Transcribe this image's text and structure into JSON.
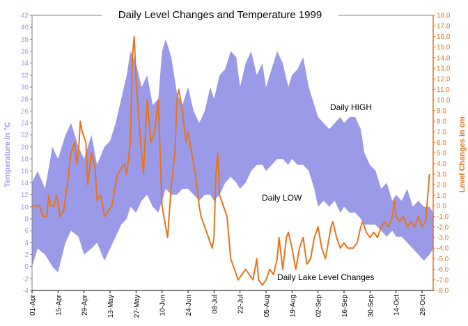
{
  "chart_data": {
    "type": "area",
    "title": "Daily Level Changes and Temperature 1999",
    "ylabel_left": "Temperature in °C",
    "ylabel_right": "Level Changes in cm",
    "ylim_left": [
      -4,
      42
    ],
    "ylim_right": [
      -8,
      18
    ],
    "x_start": "1999-04-01",
    "x_end": "1999-11-03",
    "x_tick_labels": [
      "01-Apr",
      "15-Apr",
      "29-Apr",
      "13-May",
      "27-May",
      "10-Jun",
      "24-Jun",
      "08-Jul",
      "22-Jul",
      "05-Aug",
      "19-Aug",
      "02-Sep",
      "16-Sep",
      "30-Sep",
      "14-Oct",
      "28-Oct"
    ],
    "left_tick_labels": [
      "-4",
      "-2",
      "0",
      "2",
      "4",
      "6",
      "8",
      "10",
      "12",
      "14",
      "16",
      "18",
      "20",
      "22",
      "24",
      "26",
      "28",
      "30",
      "32",
      "34",
      "36",
      "38",
      "40",
      "42"
    ],
    "right_tick_labels": [
      "-8.0",
      "-7.0",
      "-6.0",
      "-5.0",
      "-4.0",
      "-3.0",
      "-2.0",
      "-1.0",
      "0.0",
      "1.0",
      "2.0",
      "3.0",
      "4.0",
      "5.0",
      "6.0",
      "7.0",
      "8.0",
      "9.0",
      "10.0",
      "11.0",
      "12.0",
      "13.0",
      "14.0",
      "15.0",
      "16.0",
      "17.0",
      "18.0"
    ],
    "annotations": {
      "high": "Daily HIGH",
      "low": "Daily LOW",
      "lake": "Daily Lake Level Changes"
    },
    "colors": {
      "temperature_band": "#9a9ae8",
      "level_line": "#e8731a",
      "axis": "#000000"
    },
    "series": [
      {
        "name": "Daily HIGH",
        "axis": "left",
        "points": [
          [
            "1999-04-01",
            14
          ],
          [
            "1999-04-04",
            16
          ],
          [
            "1999-04-08",
            13
          ],
          [
            "1999-04-12",
            20
          ],
          [
            "1999-04-15",
            18
          ],
          [
            "1999-04-19",
            22
          ],
          [
            "1999-04-22",
            24
          ],
          [
            "1999-04-26",
            20
          ],
          [
            "1999-04-29",
            18
          ],
          [
            "1999-05-03",
            22
          ],
          [
            "1999-05-06",
            17
          ],
          [
            "1999-05-10",
            20
          ],
          [
            "1999-05-13",
            21
          ],
          [
            "1999-05-16",
            24
          ],
          [
            "1999-05-19",
            28
          ],
          [
            "1999-05-22",
            32
          ],
          [
            "1999-05-24",
            36
          ],
          [
            "1999-05-27",
            34
          ],
          [
            "1999-05-30",
            30
          ],
          [
            "1999-06-02",
            32
          ],
          [
            "1999-06-05",
            27
          ],
          [
            "1999-06-08",
            28
          ],
          [
            "1999-06-10",
            36
          ],
          [
            "1999-06-12",
            38
          ],
          [
            "1999-06-15",
            35
          ],
          [
            "1999-06-18",
            29
          ],
          [
            "1999-06-21",
            27
          ],
          [
            "1999-06-24",
            30
          ],
          [
            "1999-06-27",
            26
          ],
          [
            "1999-06-30",
            24
          ],
          [
            "1999-07-03",
            26
          ],
          [
            "1999-07-06",
            30
          ],
          [
            "1999-07-08",
            28
          ],
          [
            "1999-07-11",
            32
          ],
          [
            "1999-07-14",
            33
          ],
          [
            "1999-07-17",
            36
          ],
          [
            "1999-07-20",
            35
          ],
          [
            "1999-07-22",
            30
          ],
          [
            "1999-07-25",
            34
          ],
          [
            "1999-07-28",
            36
          ],
          [
            "1999-07-31",
            32
          ],
          [
            "1999-08-03",
            34
          ],
          [
            "1999-08-05",
            30
          ],
          [
            "1999-08-08",
            33
          ],
          [
            "1999-08-11",
            36
          ],
          [
            "1999-08-14",
            34
          ],
          [
            "1999-08-17",
            30
          ],
          [
            "1999-08-19",
            32
          ],
          [
            "1999-08-22",
            33
          ],
          [
            "1999-08-25",
            35
          ],
          [
            "1999-08-28",
            30
          ],
          [
            "1999-08-31",
            27
          ],
          [
            "1999-09-02",
            25
          ],
          [
            "1999-09-05",
            24
          ],
          [
            "1999-09-08",
            23
          ],
          [
            "1999-09-11",
            24
          ],
          [
            "1999-09-14",
            25
          ],
          [
            "1999-09-16",
            24
          ],
          [
            "1999-09-19",
            25
          ],
          [
            "1999-09-22",
            25
          ],
          [
            "1999-09-25",
            23
          ],
          [
            "1999-09-27",
            19
          ],
          [
            "1999-09-30",
            17
          ],
          [
            "1999-10-03",
            16
          ],
          [
            "1999-10-06",
            13
          ],
          [
            "1999-10-09",
            14
          ],
          [
            "1999-10-12",
            11
          ],
          [
            "1999-10-14",
            12
          ],
          [
            "1999-10-17",
            11
          ],
          [
            "1999-10-20",
            13
          ],
          [
            "1999-10-23",
            10
          ],
          [
            "1999-10-26",
            11
          ],
          [
            "1999-10-29",
            10
          ],
          [
            "1999-11-01",
            10
          ],
          [
            "1999-11-03",
            9
          ]
        ]
      },
      {
        "name": "Daily LOW",
        "axis": "left",
        "points": [
          [
            "1999-04-01",
            0
          ],
          [
            "1999-04-04",
            3
          ],
          [
            "1999-04-08",
            2
          ],
          [
            "1999-04-12",
            0
          ],
          [
            "1999-04-15",
            -1
          ],
          [
            "1999-04-19",
            4
          ],
          [
            "1999-04-22",
            6
          ],
          [
            "1999-04-26",
            5
          ],
          [
            "1999-04-29",
            2
          ],
          [
            "1999-05-03",
            3
          ],
          [
            "1999-05-06",
            4
          ],
          [
            "1999-05-10",
            1
          ],
          [
            "1999-05-13",
            3
          ],
          [
            "1999-05-16",
            5
          ],
          [
            "1999-05-19",
            7
          ],
          [
            "1999-05-22",
            8
          ],
          [
            "1999-05-24",
            10
          ],
          [
            "1999-05-27",
            9
          ],
          [
            "1999-05-30",
            11
          ],
          [
            "1999-06-02",
            12
          ],
          [
            "1999-06-05",
            10
          ],
          [
            "1999-06-08",
            9
          ],
          [
            "1999-06-10",
            11
          ],
          [
            "1999-06-12",
            13
          ],
          [
            "1999-06-15",
            12
          ],
          [
            "1999-06-18",
            12
          ],
          [
            "1999-06-21",
            13
          ],
          [
            "1999-06-24",
            13
          ],
          [
            "1999-06-27",
            12
          ],
          [
            "1999-06-30",
            11
          ],
          [
            "1999-07-03",
            12
          ],
          [
            "1999-07-06",
            12
          ],
          [
            "1999-07-08",
            11
          ],
          [
            "1999-07-11",
            12
          ],
          [
            "1999-07-14",
            14
          ],
          [
            "1999-07-17",
            15
          ],
          [
            "1999-07-20",
            14
          ],
          [
            "1999-07-22",
            13
          ],
          [
            "1999-07-25",
            14
          ],
          [
            "1999-07-28",
            16
          ],
          [
            "1999-07-31",
            17
          ],
          [
            "1999-08-03",
            17
          ],
          [
            "1999-08-05",
            16
          ],
          [
            "1999-08-08",
            17
          ],
          [
            "1999-08-11",
            18
          ],
          [
            "1999-08-14",
            18
          ],
          [
            "1999-08-17",
            17
          ],
          [
            "1999-08-19",
            18
          ],
          [
            "1999-08-22",
            17
          ],
          [
            "1999-08-25",
            17
          ],
          [
            "1999-08-28",
            16
          ],
          [
            "1999-08-31",
            13
          ],
          [
            "1999-09-02",
            10
          ],
          [
            "1999-09-05",
            11
          ],
          [
            "1999-09-08",
            10
          ],
          [
            "1999-09-11",
            11
          ],
          [
            "1999-09-14",
            9
          ],
          [
            "1999-09-16",
            10
          ],
          [
            "1999-09-19",
            9
          ],
          [
            "1999-09-22",
            9
          ],
          [
            "1999-09-25",
            8
          ],
          [
            "1999-09-27",
            7
          ],
          [
            "1999-09-30",
            7
          ],
          [
            "1999-10-03",
            7
          ],
          [
            "1999-10-06",
            6
          ],
          [
            "1999-10-09",
            5
          ],
          [
            "1999-10-12",
            6
          ],
          [
            "1999-10-14",
            5
          ],
          [
            "1999-10-17",
            5
          ],
          [
            "1999-10-20",
            4
          ],
          [
            "1999-10-23",
            3
          ],
          [
            "1999-10-26",
            2
          ],
          [
            "1999-10-29",
            1
          ],
          [
            "1999-11-01",
            2
          ],
          [
            "1999-11-03",
            3
          ]
        ]
      },
      {
        "name": "Daily Lake Level Changes",
        "axis": "right",
        "points": [
          [
            "1999-04-01",
            0
          ],
          [
            "1999-04-05",
            0
          ],
          [
            "1999-04-07",
            -1
          ],
          [
            "1999-04-09",
            -1
          ],
          [
            "1999-04-10",
            1
          ],
          [
            "1999-04-11",
            0
          ],
          [
            "1999-04-13",
            0
          ],
          [
            "1999-04-14",
            1
          ],
          [
            "1999-04-15",
            0.5
          ],
          [
            "1999-04-16",
            -1
          ],
          [
            "1999-04-18",
            -0.5
          ],
          [
            "1999-04-20",
            2
          ],
          [
            "1999-04-22",
            5
          ],
          [
            "1999-04-24",
            6
          ],
          [
            "1999-04-25",
            4
          ],
          [
            "1999-04-26",
            5
          ],
          [
            "1999-04-27",
            8
          ],
          [
            "1999-04-28",
            7
          ],
          [
            "1999-04-30",
            6
          ],
          [
            "1999-05-01",
            2
          ],
          [
            "1999-05-03",
            5
          ],
          [
            "1999-05-05",
            3.5
          ],
          [
            "1999-05-06",
            0.5
          ],
          [
            "1999-05-08",
            1
          ],
          [
            "1999-05-10",
            -1
          ],
          [
            "1999-05-12",
            -0.5
          ],
          [
            "1999-05-14",
            0
          ],
          [
            "1999-05-17",
            3
          ],
          [
            "1999-05-19",
            3.5
          ],
          [
            "1999-05-21",
            4
          ],
          [
            "1999-05-22",
            3
          ],
          [
            "1999-05-24",
            6
          ],
          [
            "1999-05-25",
            14
          ],
          [
            "1999-05-26",
            16
          ],
          [
            "1999-05-27",
            12
          ],
          [
            "1999-05-29",
            7
          ],
          [
            "1999-05-31",
            3
          ],
          [
            "1999-06-02",
            10
          ],
          [
            "1999-06-03",
            8
          ],
          [
            "1999-06-04",
            6
          ],
          [
            "1999-06-06",
            7
          ],
          [
            "1999-06-08",
            10
          ],
          [
            "1999-06-09",
            5
          ],
          [
            "1999-06-10",
            0
          ],
          [
            "1999-06-11",
            -1
          ],
          [
            "1999-06-13",
            -3
          ],
          [
            "1999-06-15",
            2
          ],
          [
            "1999-06-17",
            5
          ],
          [
            "1999-06-18",
            10
          ],
          [
            "1999-06-19",
            11
          ],
          [
            "1999-06-21",
            9
          ],
          [
            "1999-06-23",
            6
          ],
          [
            "1999-06-24",
            7
          ],
          [
            "1999-06-26",
            5
          ],
          [
            "1999-06-28",
            3
          ],
          [
            "1999-06-30",
            0
          ],
          [
            "1999-07-01",
            -1
          ],
          [
            "1999-07-03",
            -2
          ],
          [
            "1999-07-05",
            -3
          ],
          [
            "1999-07-07",
            -4
          ],
          [
            "1999-07-08",
            -3
          ],
          [
            "1999-07-09",
            3
          ],
          [
            "1999-07-10",
            5
          ],
          [
            "1999-07-11",
            1
          ],
          [
            "1999-07-13",
            0
          ],
          [
            "1999-07-15",
            -1
          ],
          [
            "1999-07-17",
            -5
          ],
          [
            "1999-07-19",
            -6
          ],
          [
            "1999-07-21",
            -7
          ],
          [
            "1999-07-23",
            -6.5
          ],
          [
            "1999-07-25",
            -6
          ],
          [
            "1999-07-27",
            -6.5
          ],
          [
            "1999-07-29",
            -7
          ],
          [
            "1999-07-31",
            -5
          ],
          [
            "1999-08-01",
            -7
          ],
          [
            "1999-08-03",
            -7.5
          ],
          [
            "1999-08-05",
            -7
          ],
          [
            "1999-08-07",
            -6
          ],
          [
            "1999-08-09",
            -6.5
          ],
          [
            "1999-08-11",
            -5
          ],
          [
            "1999-08-12",
            -3
          ],
          [
            "1999-08-14",
            -6
          ],
          [
            "1999-08-16",
            -3
          ],
          [
            "1999-08-17",
            -2.5
          ],
          [
            "1999-08-19",
            -4
          ],
          [
            "1999-08-21",
            -6
          ],
          [
            "1999-08-23",
            -4
          ],
          [
            "1999-08-25",
            -3
          ],
          [
            "1999-08-27",
            -5.5
          ],
          [
            "1999-08-29",
            -5
          ],
          [
            "1999-08-31",
            -3
          ],
          [
            "1999-09-02",
            -2
          ],
          [
            "1999-09-04",
            -4
          ],
          [
            "1999-09-06",
            -5
          ],
          [
            "1999-09-08",
            -3
          ],
          [
            "1999-09-09",
            -2
          ],
          [
            "1999-09-10",
            -1.5
          ],
          [
            "1999-09-12",
            -3
          ],
          [
            "1999-09-14",
            -4
          ],
          [
            "1999-09-16",
            -3.5
          ],
          [
            "1999-09-18",
            -4
          ],
          [
            "1999-09-21",
            -4
          ],
          [
            "1999-09-23",
            -3.5
          ],
          [
            "1999-09-25",
            -2
          ],
          [
            "1999-09-26",
            -1.5
          ],
          [
            "1999-09-28",
            -2.5
          ],
          [
            "1999-09-30",
            -3
          ],
          [
            "1999-10-02",
            -2.5
          ],
          [
            "1999-10-04",
            -3
          ],
          [
            "1999-10-06",
            -2
          ],
          [
            "1999-10-08",
            -1.5
          ],
          [
            "1999-10-10",
            -2
          ],
          [
            "1999-10-12",
            -1
          ],
          [
            "1999-10-13",
            0.5
          ],
          [
            "1999-10-14",
            -1
          ],
          [
            "1999-10-16",
            -1.5
          ],
          [
            "1999-10-18",
            -1
          ],
          [
            "1999-10-20",
            -2
          ],
          [
            "1999-10-22",
            -1.5
          ],
          [
            "1999-10-24",
            -2
          ],
          [
            "1999-10-26",
            -1
          ],
          [
            "1999-10-28",
            -2
          ],
          [
            "1999-10-30",
            -1.5
          ],
          [
            "1999-11-01",
            3
          ]
        ]
      }
    ]
  }
}
